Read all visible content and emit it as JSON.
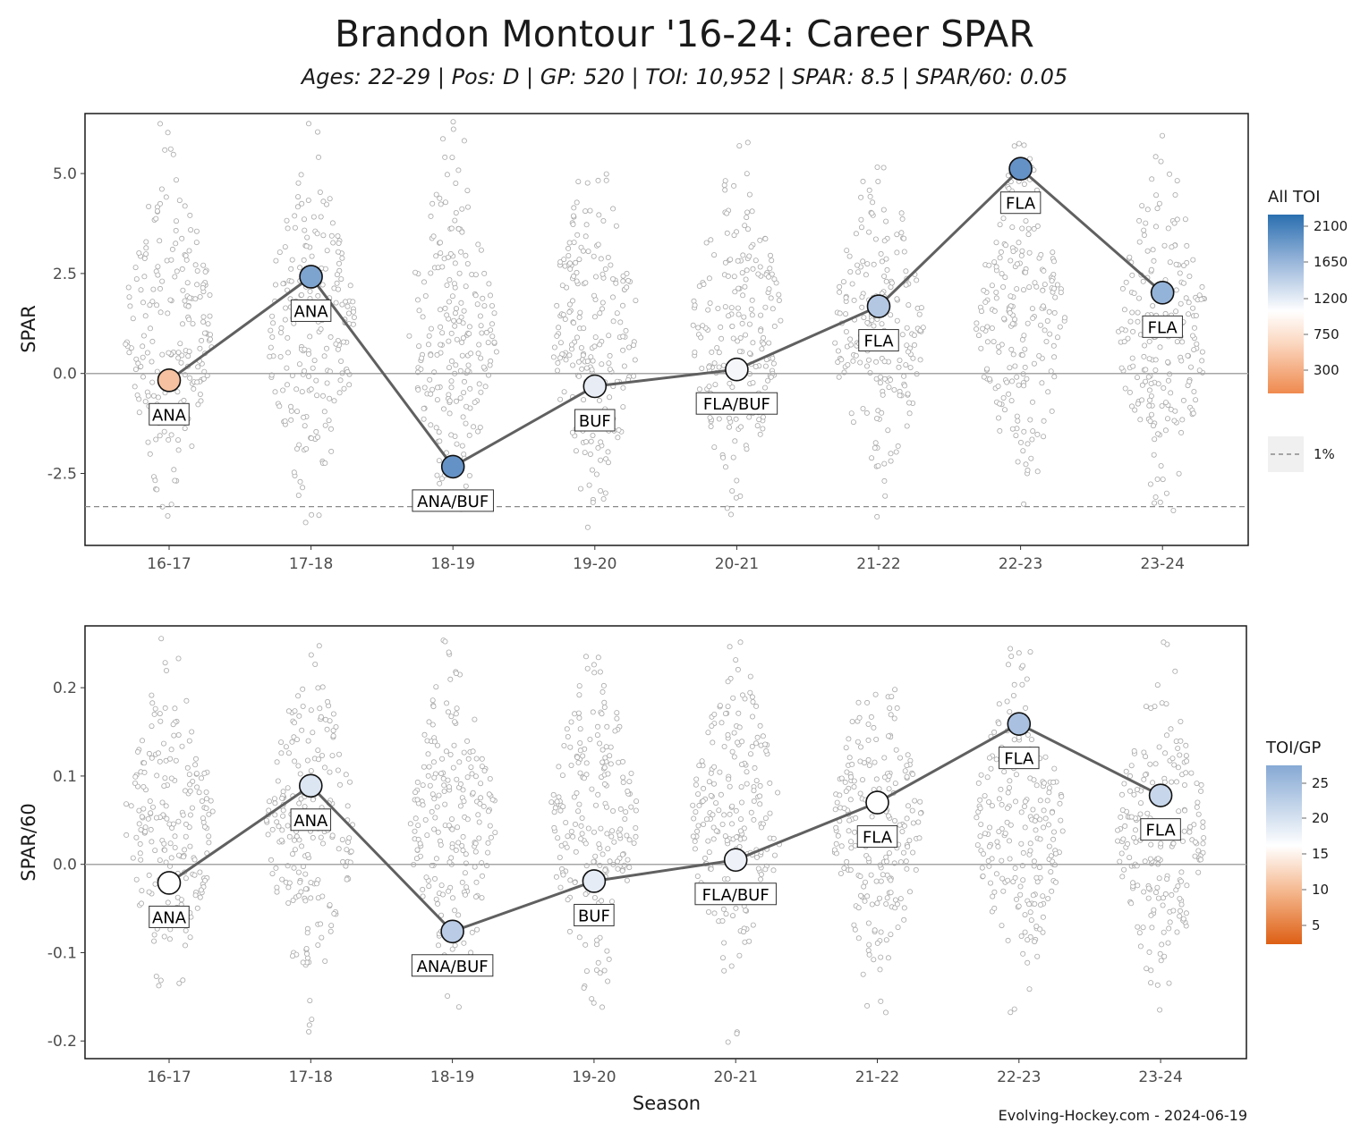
{
  "title": "Brandon Montour '16-24: Career SPAR",
  "subtitle": "Ages: 22-29 | Pos: D | GP: 520 | TOI: 10,952 | SPAR: 8.5 | SPAR/60: 0.05",
  "xlabel": "Season",
  "caption": "Evolving-Hockey.com - 2024-06-19",
  "chart_data": [
    {
      "type": "line",
      "title": "",
      "xlabel": "Season",
      "ylabel": "SPAR",
      "ylim": [
        -4.3,
        6.5
      ],
      "yticks": [
        -2.5,
        0,
        2.5,
        5
      ],
      "ytick_labels": [
        "-2.5",
        "0.0",
        "2.5",
        "5.0"
      ],
      "categories": [
        "16-17",
        "17-18",
        "18-19",
        "19-20",
        "20-21",
        "21-22",
        "22-23",
        "23-24"
      ],
      "values": [
        -0.17,
        2.42,
        -2.33,
        -0.32,
        0.1,
        1.68,
        5.12,
        2.02
      ],
      "teams": [
        "ANA",
        "ANA",
        "ANA/BUF",
        "BUF",
        "FLA/BUF",
        "FLA",
        "FLA",
        "FLA"
      ],
      "point_colors": [
        "#f6c1a0",
        "#7da3cf",
        "#6592c6",
        "#e8edf5",
        "#f4f6fa",
        "#b3c7e3",
        "#6592c6",
        "#94b3d8"
      ],
      "reference_line": {
        "value": -3.33,
        "label": "1%"
      },
      "legend": {
        "title": "All TOI",
        "ticks": [
          300,
          750,
          1200,
          1650,
          2100
        ]
      }
    },
    {
      "type": "line",
      "title": "",
      "xlabel": "Season",
      "ylabel": "SPAR/60",
      "ylim": [
        -0.22,
        0.27
      ],
      "yticks": [
        -0.2,
        -0.1,
        0,
        0.1,
        0.2
      ],
      "ytick_labels": [
        "-0.2",
        "-0.1",
        "0.0",
        "0.1",
        "0.2"
      ],
      "categories": [
        "16-17",
        "17-18",
        "18-19",
        "19-20",
        "20-21",
        "21-22",
        "22-23",
        "23-24"
      ],
      "values": [
        -0.021,
        0.089,
        -0.076,
        -0.019,
        0.005,
        0.07,
        0.159,
        0.078
      ],
      "teams": [
        "ANA",
        "ANA",
        "ANA/BUF",
        "BUF",
        "FLA/BUF",
        "FLA",
        "FLA",
        "FLA"
      ],
      "point_colors": [
        "#ffffff",
        "#dce5f2",
        "#b9cbe5",
        "#e6ecf5",
        "#eef2f8",
        "#ffffff",
        "#a9c0e0",
        "#c7d6ea"
      ],
      "legend": {
        "title": "TOI/GP",
        "ticks": [
          5,
          10,
          15,
          20,
          25
        ]
      }
    }
  ]
}
